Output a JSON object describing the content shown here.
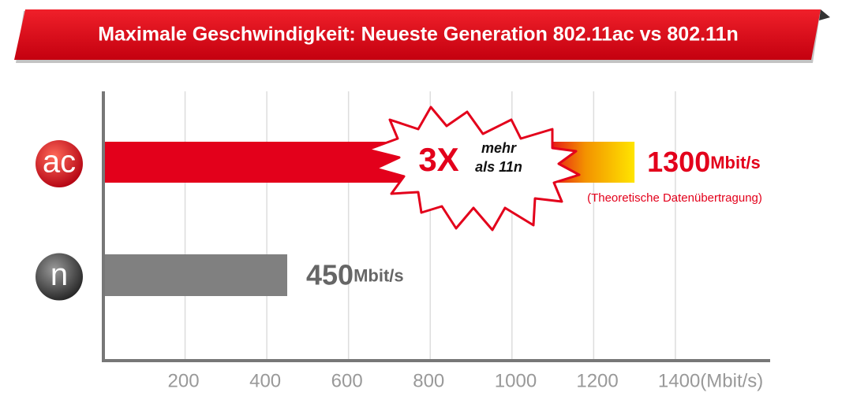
{
  "chart_data": {
    "type": "bar",
    "orientation": "horizontal",
    "title": "Maximale Geschwindigkeit: Neueste Generation 802.11ac vs 802.11n",
    "categories": [
      "ac",
      "n"
    ],
    "values": [
      1300,
      450
    ],
    "colors": [
      "#e3001b",
      "#808080"
    ],
    "unit": "Mbit/s",
    "xlim": [
      0,
      1630
    ],
    "xticks": [
      200,
      400,
      600,
      800,
      1000,
      1200,
      {
        "value": 1400,
        "label": "1400(Mbit/s)"
      }
    ],
    "grid": true,
    "annotations": {
      "factor": "3X",
      "line1": "mehr",
      "line2": "als 11n",
      "note": "(Theoretische Datenübertragung)"
    }
  }
}
